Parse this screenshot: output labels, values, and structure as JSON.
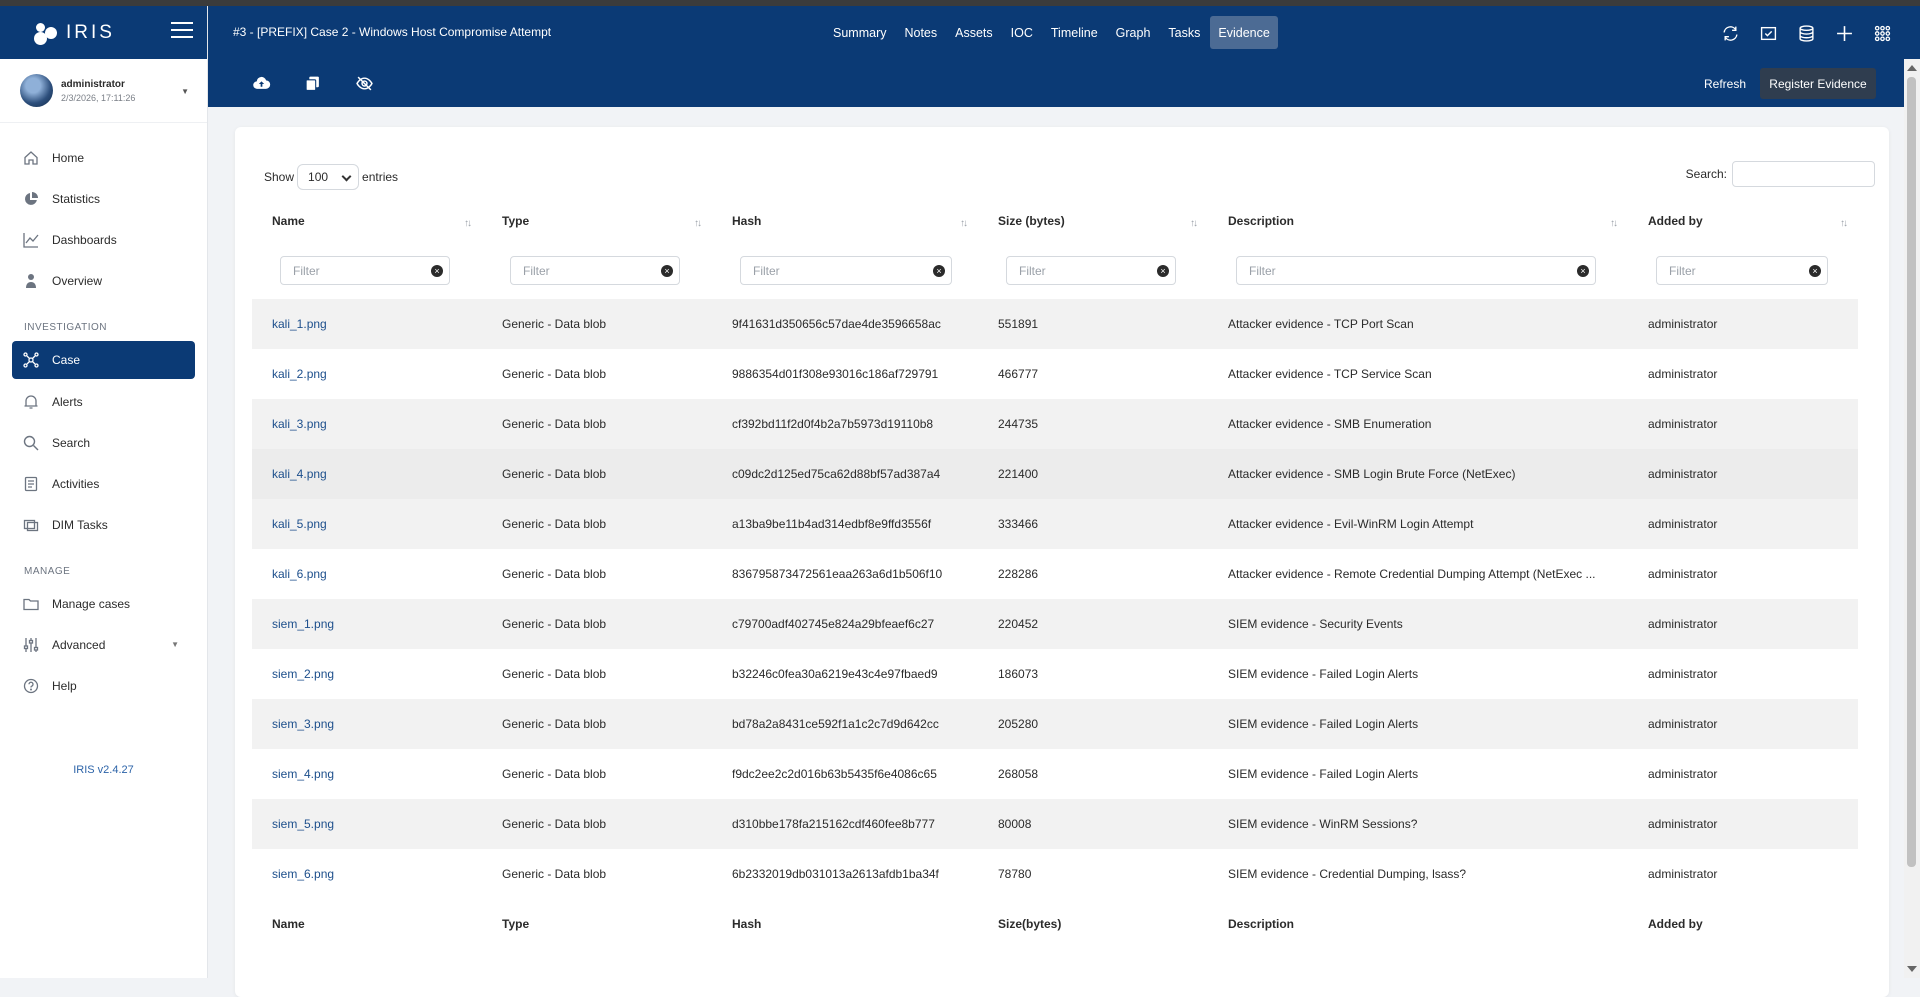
{
  "app": {
    "name": "IRIS",
    "version": "IRIS v2.4.27"
  },
  "user": {
    "name": "administrator",
    "datetime": "2/3/2026, 17:11:26"
  },
  "sidebar": {
    "items": [
      {
        "label": "Home",
        "icon": "home-icon"
      },
      {
        "label": "Statistics",
        "icon": "pie-chart-icon"
      },
      {
        "label": "Dashboards",
        "icon": "line-chart-icon"
      },
      {
        "label": "Overview",
        "icon": "overview-icon"
      }
    ],
    "investigation_label": "INVESTIGATION",
    "investigation_items": [
      {
        "label": "Case",
        "icon": "case-graph-icon",
        "active": true
      },
      {
        "label": "Alerts",
        "icon": "bell-icon"
      },
      {
        "label": "Search",
        "icon": "search-icon"
      },
      {
        "label": "Activities",
        "icon": "list-icon"
      },
      {
        "label": "DIM Tasks",
        "icon": "tasks-icon"
      }
    ],
    "manage_label": "MANAGE",
    "manage_items": [
      {
        "label": "Manage cases",
        "icon": "folder-icon"
      },
      {
        "label": "Advanced",
        "icon": "sliders-icon"
      },
      {
        "label": "Help",
        "icon": "help-icon"
      }
    ]
  },
  "header": {
    "case_title": "#3 - [PREFIX] Case 2 - Windows Host Compromise Attempt",
    "tabs": [
      "Summary",
      "Notes",
      "Assets",
      "IOC",
      "Timeline",
      "Graph",
      "Tasks",
      "Evidence"
    ],
    "active_tab": "Evidence"
  },
  "toolbar": {
    "refresh_label": "Refresh",
    "register_label": "Register Evidence"
  },
  "table": {
    "show_label": "Show",
    "entries_value": "100",
    "entries_label": "entries",
    "search_label": "Search:",
    "filter_placeholder": "Filter",
    "columns": [
      "Name",
      "Type",
      "Hash",
      "Size (bytes)",
      "Description",
      "Added by"
    ],
    "footer_columns": [
      "Name",
      "Type",
      "Hash",
      "Size(bytes)",
      "Description",
      "Added by"
    ],
    "rows": [
      {
        "name": "kali_1.png",
        "type": "Generic - Data blob",
        "hash": "9f41631d350656c57dae4de3596658ac",
        "size": "551891",
        "description": "Attacker evidence - TCP Port Scan",
        "added_by": "administrator"
      },
      {
        "name": "kali_2.png",
        "type": "Generic - Data blob",
        "hash": "9886354d01f308e93016c186af729791",
        "size": "466777",
        "description": "Attacker evidence - TCP Service Scan",
        "added_by": "administrator"
      },
      {
        "name": "kali_3.png",
        "type": "Generic - Data blob",
        "hash": "cf392bd11f2d0f4b2a7b5973d19110b8",
        "size": "244735",
        "description": "Attacker evidence - SMB Enumeration",
        "added_by": "administrator"
      },
      {
        "name": "kali_4.png",
        "type": "Generic - Data blob",
        "hash": "c09dc2d125ed75ca62d88bf57ad387a4",
        "size": "221400",
        "description": "Attacker evidence - SMB Login Brute Force (NetExec)",
        "added_by": "administrator"
      },
      {
        "name": "kali_5.png",
        "type": "Generic - Data blob",
        "hash": "a13ba9be11b4ad314edbf8e9ffd3556f",
        "size": "333466",
        "description": "Attacker evidence - Evil-WinRM Login Attempt",
        "added_by": "administrator"
      },
      {
        "name": "kali_6.png",
        "type": "Generic - Data blob",
        "hash": "836795873472561eaa263a6d1b506f10",
        "size": "228286",
        "description": "Attacker evidence - Remote Credential Dumping Attempt (NetExec ...",
        "added_by": "administrator"
      },
      {
        "name": "siem_1.png",
        "type": "Generic - Data blob",
        "hash": "c79700adf402745e824a29bfeaef6c27",
        "size": "220452",
        "description": "SIEM evidence - Security Events",
        "added_by": "administrator"
      },
      {
        "name": "siem_2.png",
        "type": "Generic - Data blob",
        "hash": "b32246c0fea30a6219e43c4e97fbaed9",
        "size": "186073",
        "description": "SIEM evidence - Failed Login Alerts",
        "added_by": "administrator"
      },
      {
        "name": "siem_3.png",
        "type": "Generic - Data blob",
        "hash": "bd78a2a8431ce592f1a1c2c7d9d642cc",
        "size": "205280",
        "description": "SIEM evidence - Failed Login Alerts",
        "added_by": "administrator"
      },
      {
        "name": "siem_4.png",
        "type": "Generic - Data blob",
        "hash": "f9dc2ee2c2d016b63b5435f6e4086c65",
        "size": "268058",
        "description": "SIEM evidence - Failed Login Alerts",
        "added_by": "administrator"
      },
      {
        "name": "siem_5.png",
        "type": "Generic - Data blob",
        "hash": "d310bbe178fa215162cdf460fee8b777",
        "size": "80008",
        "description": "SIEM evidence - WinRM Sessions?",
        "added_by": "administrator"
      },
      {
        "name": "siem_6.png",
        "type": "Generic - Data blob",
        "hash": "6b2332019db031013a2613afdb1ba34f",
        "size": "78780",
        "description": "SIEM evidence - Credential Dumping, lsass?",
        "added_by": "administrator"
      }
    ]
  },
  "colors": {
    "primary": "#0b3a75",
    "active_tab": "#4c6b94",
    "register_button": "#2f3d4f",
    "link": "#1d4f8c"
  }
}
